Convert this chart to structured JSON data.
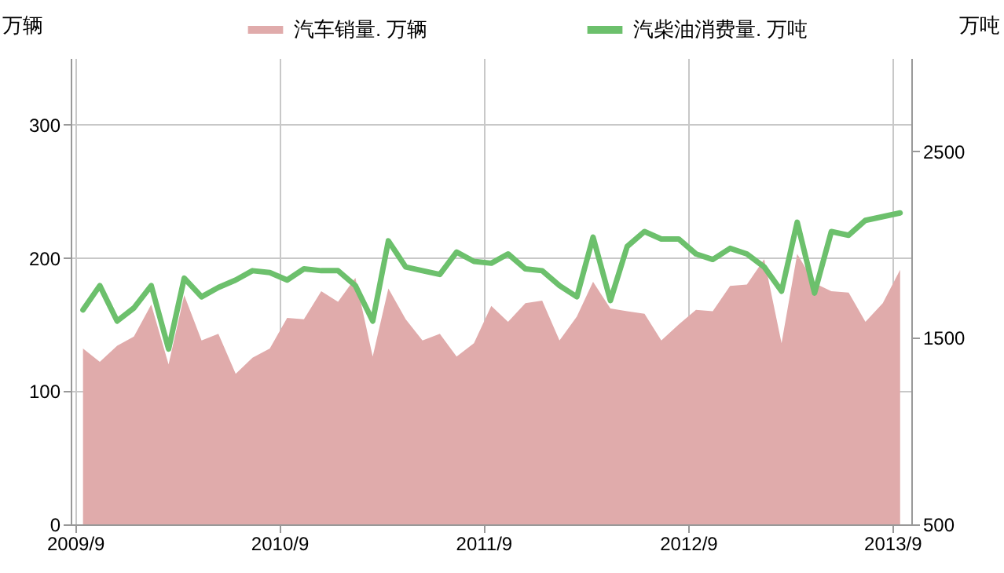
{
  "chart_data": {
    "type": "area",
    "ylabel": "万辆",
    "y2label": "万吨",
    "x": [
      "2009-09-15",
      "2009-10-15",
      "2009-11-15",
      "2009-12-15",
      "2010-01-15",
      "2010-02-15",
      "2010-03-15",
      "2010-04-15",
      "2010-05-15",
      "2010-06-15",
      "2010-07-15",
      "2010-08-15",
      "2010-09-15",
      "2010-10-15",
      "2010-11-15",
      "2010-12-15",
      "2011-01-15",
      "2011-02-15",
      "2011-03-15",
      "2011-04-15",
      "2011-05-15",
      "2011-06-15",
      "2011-07-15",
      "2011-08-15",
      "2011-09-15",
      "2011-10-15",
      "2011-11-15",
      "2011-12-15",
      "2012-01-15",
      "2012-02-15",
      "2012-03-15",
      "2012-04-15",
      "2012-05-15",
      "2012-06-15",
      "2012-07-15",
      "2012-08-15",
      "2012-09-15",
      "2012-10-15",
      "2012-11-15",
      "2012-12-15",
      "2013-01-15",
      "2013-02-15",
      "2013-03-15",
      "2013-04-15",
      "2013-05-15",
      "2013-06-15",
      "2013-07-15",
      "2013-08-15",
      "2013-09-15"
    ],
    "series": [
      {
        "name": "汽车销量. 万辆",
        "color": "#e0abab",
        "values": [
          132,
          122,
          134,
          141,
          165,
          120,
          172,
          138,
          143,
          113,
          125,
          132,
          155,
          154,
          175,
          167,
          185,
          126,
          177,
          154,
          138,
          143,
          126,
          136,
          164,
          152,
          166,
          168,
          138,
          156,
          182,
          162,
          160,
          158,
          138,
          150,
          161,
          160,
          179,
          180,
          199,
          136,
          203,
          181,
          175,
          174,
          152,
          166,
          191
        ]
      },
      {
        "name": "汽柴油消费量. 万吨",
        "type": "line",
        "axis": "y2",
        "color": "#6cc06c",
        "values": [
          1650,
          1780,
          1590,
          1660,
          1780,
          1440,
          1820,
          1720,
          1770,
          1810,
          1860,
          1850,
          1810,
          1870,
          1860,
          1860,
          1780,
          1590,
          2020,
          1880,
          1860,
          1840,
          1960,
          1910,
          1900,
          1950,
          1870,
          1860,
          1780,
          1720,
          2040,
          1700,
          1990,
          2070,
          2030,
          2030,
          1950,
          1920,
          1980,
          1950,
          1880,
          1750,
          2120,
          1740,
          2070,
          2050,
          2130,
          2150,
          2170
        ]
      }
    ],
    "xlim": [
      "2009-08-24",
      "2013-10-05"
    ],
    "xticks": [
      {
        "value": "2009-09-01",
        "label": "2009/9"
      },
      {
        "value": "2010-09-01",
        "label": "2010/9"
      },
      {
        "value": "2011-09-01",
        "label": "2011/9"
      },
      {
        "value": "2012-09-01",
        "label": "2012/9"
      },
      {
        "value": "2013-09-01",
        "label": "2013/9"
      }
    ],
    "ylim": [
      0,
      350
    ],
    "yticks": [
      0,
      100,
      200,
      300
    ],
    "y2lim": [
      500,
      3000
    ],
    "y2ticks": [
      500,
      1500,
      2500
    ],
    "grid": true,
    "legend": "top"
  }
}
